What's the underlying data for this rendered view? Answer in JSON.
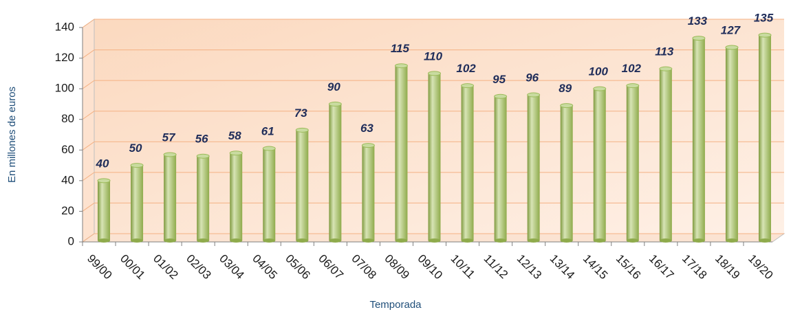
{
  "chart_data": {
    "type": "bar",
    "x_label": "Temporada",
    "y_label": "En millones de euros",
    "categories": [
      "99/00",
      "00/01",
      "01/02",
      "02/03",
      "03/04",
      "04/05",
      "05/06",
      "06/07",
      "07/08",
      "08/09",
      "09/10",
      "10/11",
      "11/12",
      "12/13",
      "13/14",
      "14/15",
      "15/16",
      "16/17",
      "17/18",
      "18/19",
      "19/20"
    ],
    "values": [
      40,
      50,
      57,
      56,
      58,
      61,
      73,
      90,
      63,
      115,
      110,
      102,
      95,
      96,
      89,
      100,
      102,
      113,
      133,
      127,
      135
    ],
    "color": "#9bbb59",
    "ylim": [
      0,
      140
    ],
    "yticks": [
      0,
      20,
      40,
      60,
      80,
      100,
      120,
      140
    ],
    "grid": true
  }
}
